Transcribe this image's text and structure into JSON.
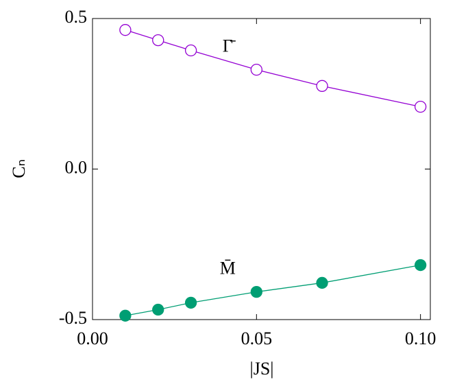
{
  "chart_data": {
    "type": "line",
    "x_label": "|JS|",
    "y_label": "Cₙ",
    "x": [
      0.01,
      0.02,
      0.03,
      0.05,
      0.07,
      0.1
    ],
    "series": [
      {
        "name": "Γ̄",
        "color": "#9400d3",
        "marker": "open",
        "values": [
          0.462,
          0.428,
          0.394,
          0.33,
          0.276,
          0.207
        ]
      },
      {
        "name": "M̄",
        "color": "#009e73",
        "marker": "filled",
        "values": [
          -0.487,
          -0.467,
          -0.444,
          -0.408,
          -0.378,
          -0.319
        ]
      }
    ],
    "xlim": [
      0,
      0.103
    ],
    "ylim": [
      -0.5,
      0.5
    ],
    "xticks": [
      {
        "value": 0,
        "label": "0.00"
      },
      {
        "value": 0.05,
        "label": "0.05"
      },
      {
        "value": 0.1,
        "label": "0.10"
      }
    ],
    "yticks": [
      -0.5,
      {
        "value": 0,
        "label": "0.0"
      },
      0.5
    ],
    "grid": false
  }
}
